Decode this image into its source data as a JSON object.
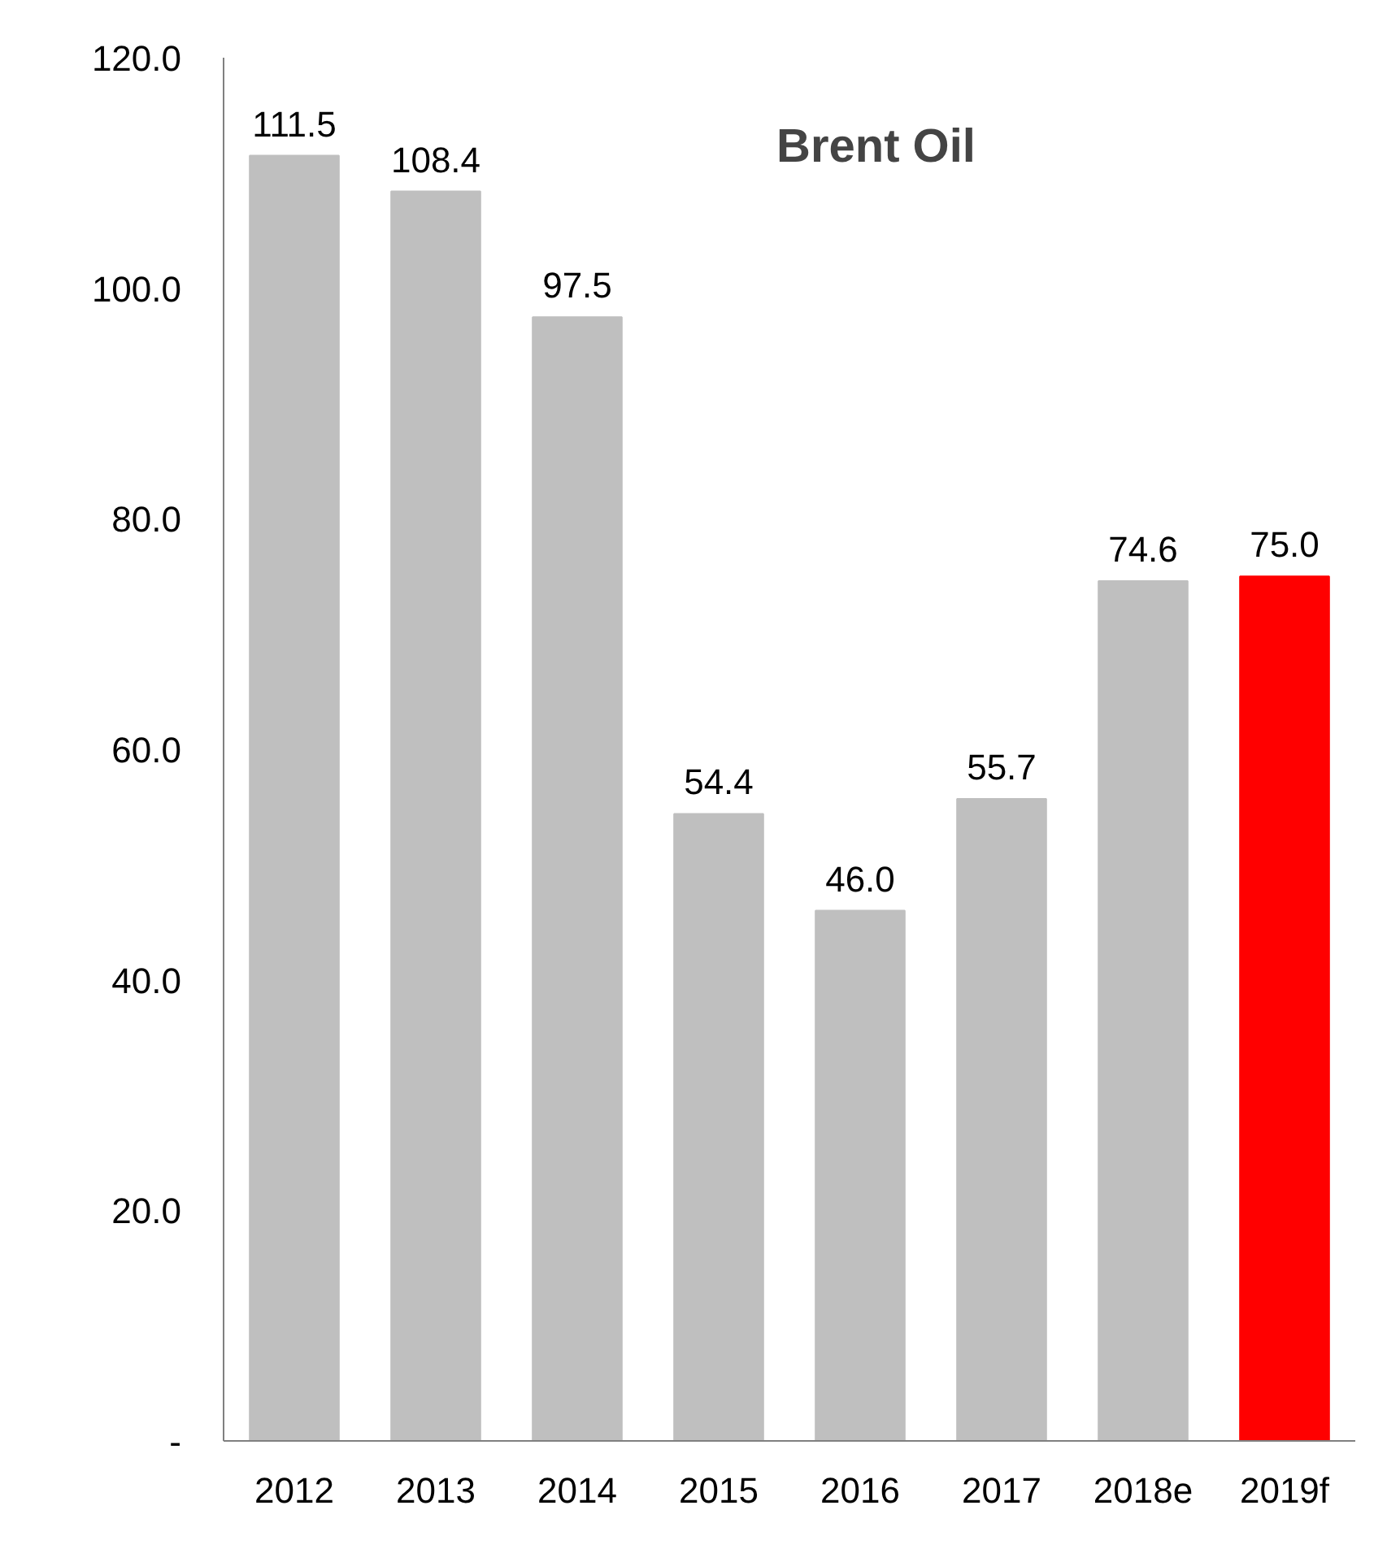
{
  "chart_data": {
    "type": "bar",
    "title": "Brent Oil",
    "categories": [
      "2012",
      "2013",
      "2014",
      "2015",
      "2016",
      "2017",
      "2018e",
      "2019f"
    ],
    "values": [
      111.5,
      108.4,
      97.5,
      54.4,
      46.0,
      55.7,
      74.6,
      75.0
    ],
    "colors": [
      "#bfbfbf",
      "#bfbfbf",
      "#bfbfbf",
      "#bfbfbf",
      "#bfbfbf",
      "#bfbfbf",
      "#bfbfbf",
      "#ff0000"
    ],
    "ylim": [
      0,
      120
    ],
    "yticks": [
      {
        "value": 0,
        "label": "-"
      },
      {
        "value": 20,
        "label": "20.0"
      },
      {
        "value": 40,
        "label": "40.0"
      },
      {
        "value": 60,
        "label": "60.0"
      },
      {
        "value": 80,
        "label": "80.0"
      },
      {
        "value": 100,
        "label": "100.0"
      },
      {
        "value": 120,
        "label": "120.0"
      }
    ],
    "value_labels": [
      "111.5",
      "108.4",
      "97.5",
      "54.4",
      "46.0",
      "55.7",
      "74.6",
      "75.0"
    ],
    "grid": false
  }
}
